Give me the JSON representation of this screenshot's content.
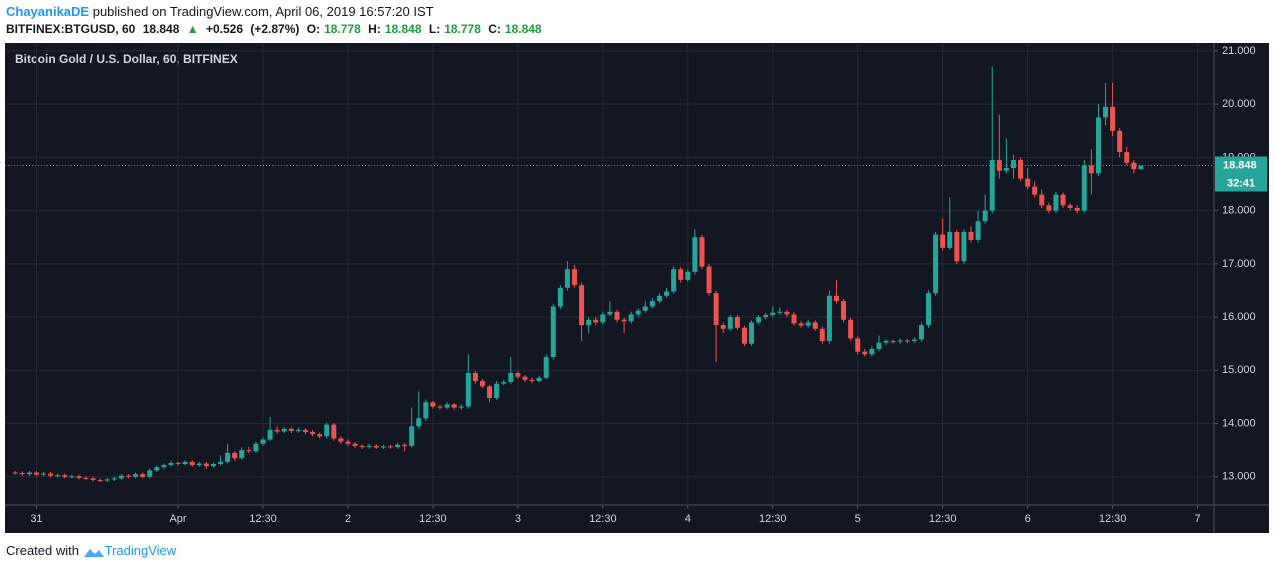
{
  "header": {
    "author": "ChayanikaDE",
    "published": "published on TradingView.com, April 06, 2019 16:57:20 IST",
    "symbol": "BITFINEX:BTGUSD, 60",
    "change": "+0.526",
    "change_pct": "(+2.87%)",
    "ohlc_labels": [
      "O:",
      "H:",
      "L:",
      "C:"
    ]
  },
  "footer": {
    "created": "Created with",
    "brand": "TradingView"
  },
  "chart_data": {
    "type": "candlestick",
    "title": "Bitcoin Gold / U.S. Dollar, 60, BITFINEX",
    "up_color": "#26a69a",
    "down_color": "#ef5350",
    "grid": true,
    "countdown": "32:41",
    "ylim": [
      12.47,
      21.13
    ],
    "yticks": [
      {
        "value": 13,
        "label": "13.000"
      },
      {
        "value": 14,
        "label": "14.000"
      },
      {
        "value": 15,
        "label": "15.000"
      },
      {
        "value": 16,
        "label": "16.000"
      },
      {
        "value": 17,
        "label": "17.000"
      },
      {
        "value": 18,
        "label": "18.000"
      },
      {
        "value": 19,
        "label": "19.000"
      },
      {
        "value": 20,
        "label": "20.000"
      },
      {
        "value": 21,
        "label": "21.000"
      }
    ],
    "categories": [
      null,
      null,
      null,
      "31",
      null,
      null,
      null,
      null,
      null,
      null,
      null,
      null,
      null,
      null,
      null,
      null,
      null,
      null,
      null,
      null,
      null,
      null,
      null,
      "Apr",
      null,
      null,
      null,
      null,
      null,
      null,
      null,
      null,
      null,
      null,
      null,
      "12:30",
      null,
      null,
      null,
      null,
      null,
      null,
      null,
      null,
      null,
      null,
      null,
      "2",
      null,
      null,
      null,
      null,
      null,
      null,
      null,
      null,
      null,
      null,
      null,
      "12:30",
      null,
      null,
      null,
      null,
      null,
      null,
      null,
      null,
      null,
      null,
      null,
      "3",
      null,
      null,
      null,
      null,
      null,
      null,
      null,
      null,
      null,
      null,
      null,
      "12:30",
      null,
      null,
      null,
      null,
      null,
      null,
      null,
      null,
      null,
      null,
      null,
      "4",
      null,
      null,
      null,
      null,
      null,
      null,
      null,
      null,
      null,
      null,
      null,
      "12:30",
      null,
      null,
      null,
      null,
      null,
      null,
      null,
      null,
      null,
      null,
      null,
      "5",
      null,
      null,
      null,
      null,
      null,
      null,
      null,
      null,
      null,
      null,
      null,
      "12:30",
      null,
      null,
      null,
      null,
      null,
      null,
      null,
      null,
      null,
      null,
      null,
      "6",
      null,
      null,
      null,
      null,
      null,
      null,
      null,
      null,
      null,
      null,
      null,
      "12:30",
      null,
      null,
      null,
      null,
      null,
      null,
      null,
      null,
      null,
      null,
      null,
      "7"
    ],
    "ohlc": [
      [
        13.08,
        13.11,
        13.04,
        13.07
      ],
      [
        13.07,
        13.1,
        13.02,
        13.05
      ],
      [
        13.05,
        13.11,
        13.02,
        13.08
      ],
      [
        13.08,
        13.11,
        13.01,
        13.04
      ],
      [
        13.04,
        13.09,
        13.01,
        13.06
      ],
      [
        13.06,
        13.09,
        12.99,
        13.02
      ],
      [
        13.02,
        13.06,
        12.99,
        13.03
      ],
      [
        13.03,
        13.06,
        12.97,
        13.0
      ],
      [
        13.0,
        13.04,
        12.97,
        13.01
      ],
      [
        13.01,
        13.04,
        12.95,
        12.98
      ],
      [
        12.98,
        13.01,
        12.94,
        12.97
      ],
      [
        12.97,
        13.0,
        12.91,
        12.94
      ],
      [
        12.94,
        12.97,
        12.9,
        12.93
      ],
      [
        12.93,
        12.98,
        12.9,
        12.95
      ],
      [
        12.95,
        13.0,
        12.92,
        12.97
      ],
      [
        12.97,
        13.05,
        12.94,
        13.02
      ],
      [
        13.02,
        13.05,
        12.97,
        13.0
      ],
      [
        13.0,
        13.08,
        12.97,
        13.05
      ],
      [
        13.05,
        13.08,
        12.97,
        13.0
      ],
      [
        13.0,
        13.15,
        12.97,
        13.12
      ],
      [
        13.12,
        13.21,
        13.09,
        13.18
      ],
      [
        13.18,
        13.25,
        13.15,
        13.22
      ],
      [
        13.22,
        13.3,
        13.19,
        13.26
      ],
      [
        13.26,
        13.29,
        13.21,
        13.24
      ],
      [
        13.24,
        13.31,
        13.21,
        13.28
      ],
      [
        13.28,
        13.31,
        13.19,
        13.22
      ],
      [
        13.22,
        13.28,
        13.19,
        13.25
      ],
      [
        13.25,
        13.28,
        13.15,
        13.2
      ],
      [
        13.2,
        13.27,
        13.17,
        13.24
      ],
      [
        13.24,
        13.4,
        13.21,
        13.28
      ],
      [
        13.28,
        13.62,
        13.25,
        13.45
      ],
      [
        13.45,
        13.48,
        13.3,
        13.35
      ],
      [
        13.35,
        13.55,
        13.32,
        13.5
      ],
      [
        13.5,
        13.56,
        13.44,
        13.48
      ],
      [
        13.48,
        13.66,
        13.45,
        13.62
      ],
      [
        13.62,
        13.74,
        13.58,
        13.7
      ],
      [
        13.7,
        14.12,
        13.67,
        13.88
      ],
      [
        13.88,
        13.95,
        13.8,
        13.85
      ],
      [
        13.85,
        13.93,
        13.82,
        13.9
      ],
      [
        13.9,
        13.93,
        13.82,
        13.86
      ],
      [
        13.86,
        13.92,
        13.83,
        13.88
      ],
      [
        13.88,
        13.91,
        13.8,
        13.84
      ],
      [
        13.84,
        13.88,
        13.76,
        13.8
      ],
      [
        13.8,
        13.83,
        13.72,
        13.76
      ],
      [
        13.76,
        14.02,
        13.72,
        13.98
      ],
      [
        13.98,
        14.01,
        13.68,
        13.72
      ],
      [
        13.72,
        13.76,
        13.62,
        13.66
      ],
      [
        13.66,
        13.7,
        13.58,
        13.62
      ],
      [
        13.62,
        13.65,
        13.54,
        13.58
      ],
      [
        13.58,
        13.61,
        13.52,
        13.56
      ],
      [
        13.56,
        13.62,
        13.53,
        13.58
      ],
      [
        13.58,
        13.61,
        13.52,
        13.55
      ],
      [
        13.55,
        13.6,
        13.52,
        13.57
      ],
      [
        13.57,
        13.6,
        13.53,
        13.56
      ],
      [
        13.56,
        13.64,
        13.53,
        13.6
      ],
      [
        13.6,
        13.63,
        13.48,
        13.58
      ],
      [
        13.58,
        14.3,
        13.55,
        13.95
      ],
      [
        13.95,
        14.6,
        13.9,
        14.1
      ],
      [
        14.1,
        14.45,
        14.05,
        14.4
      ],
      [
        14.4,
        14.43,
        14.28,
        14.32
      ],
      [
        14.32,
        14.35,
        14.26,
        14.3
      ],
      [
        14.3,
        14.4,
        14.27,
        14.36
      ],
      [
        14.36,
        14.39,
        14.26,
        14.3
      ],
      [
        14.3,
        14.36,
        14.26,
        14.32
      ],
      [
        14.32,
        15.3,
        14.28,
        14.95
      ],
      [
        14.95,
        14.99,
        14.75,
        14.8
      ],
      [
        14.8,
        14.84,
        14.66,
        14.7
      ],
      [
        14.7,
        14.73,
        14.4,
        14.48
      ],
      [
        14.48,
        14.8,
        14.44,
        14.75
      ],
      [
        14.75,
        14.82,
        14.72,
        14.78
      ],
      [
        14.78,
        15.25,
        14.74,
        14.95
      ],
      [
        14.95,
        14.98,
        14.84,
        14.88
      ],
      [
        14.88,
        14.91,
        14.78,
        14.82
      ],
      [
        14.82,
        14.86,
        14.76,
        14.8
      ],
      [
        14.8,
        14.9,
        14.77,
        14.86
      ],
      [
        14.86,
        15.3,
        14.83,
        15.25
      ],
      [
        15.25,
        16.25,
        15.2,
        16.2
      ],
      [
        16.2,
        16.6,
        16.15,
        16.55
      ],
      [
        16.55,
        17.05,
        16.5,
        16.9
      ],
      [
        16.9,
        16.98,
        16.55,
        16.6
      ],
      [
        16.6,
        16.65,
        15.55,
        15.85
      ],
      [
        15.85,
        16.0,
        15.7,
        15.95
      ],
      [
        15.95,
        16.0,
        15.85,
        15.9
      ],
      [
        15.9,
        16.1,
        15.86,
        16.05
      ],
      [
        16.05,
        16.3,
        16.02,
        16.1
      ],
      [
        16.1,
        16.14,
        15.9,
        15.95
      ],
      [
        15.95,
        15.99,
        15.7,
        15.92
      ],
      [
        15.92,
        16.1,
        15.88,
        16.05
      ],
      [
        16.05,
        16.16,
        16.0,
        16.12
      ],
      [
        16.12,
        16.3,
        16.08,
        16.2
      ],
      [
        16.2,
        16.36,
        16.16,
        16.3
      ],
      [
        16.3,
        16.45,
        16.26,
        16.4
      ],
      [
        16.4,
        16.55,
        16.36,
        16.48
      ],
      [
        16.48,
        16.95,
        16.44,
        16.9
      ],
      [
        16.9,
        16.94,
        16.65,
        16.7
      ],
      [
        16.7,
        16.9,
        16.66,
        16.85
      ],
      [
        16.85,
        17.65,
        16.8,
        17.5
      ],
      [
        17.5,
        17.55,
        16.9,
        16.95
      ],
      [
        16.95,
        17.0,
        16.4,
        16.45
      ],
      [
        16.45,
        16.5,
        15.15,
        15.85
      ],
      [
        15.85,
        15.9,
        15.7,
        15.78
      ],
      [
        15.78,
        16.04,
        15.74,
        16.0
      ],
      [
        16.0,
        16.04,
        15.76,
        15.8
      ],
      [
        15.8,
        15.84,
        15.45,
        15.5
      ],
      [
        15.5,
        15.94,
        15.46,
        15.9
      ],
      [
        15.9,
        16.04,
        15.86,
        16.0
      ],
      [
        16.0,
        16.08,
        15.96,
        16.04
      ],
      [
        16.04,
        16.2,
        16.0,
        16.08
      ],
      [
        16.08,
        16.18,
        16.04,
        16.1
      ],
      [
        16.1,
        16.14,
        16.0,
        16.05
      ],
      [
        16.05,
        16.09,
        15.84,
        15.88
      ],
      [
        15.88,
        15.92,
        15.8,
        15.84
      ],
      [
        15.84,
        15.95,
        15.8,
        15.9
      ],
      [
        15.9,
        15.94,
        15.74,
        15.78
      ],
      [
        15.78,
        15.82,
        15.5,
        15.55
      ],
      [
        15.55,
        16.5,
        15.5,
        16.4
      ],
      [
        16.4,
        16.7,
        16.25,
        16.3
      ],
      [
        16.3,
        16.34,
        15.9,
        15.95
      ],
      [
        15.95,
        15.99,
        15.55,
        15.6
      ],
      [
        15.6,
        15.64,
        15.3,
        15.35
      ],
      [
        15.35,
        15.4,
        15.26,
        15.3
      ],
      [
        15.3,
        15.45,
        15.26,
        15.4
      ],
      [
        15.4,
        15.65,
        15.36,
        15.52
      ],
      [
        15.52,
        15.58,
        15.48,
        15.55
      ],
      [
        15.55,
        15.58,
        15.5,
        15.54
      ],
      [
        15.54,
        15.6,
        15.5,
        15.56
      ],
      [
        15.56,
        15.59,
        15.51,
        15.55
      ],
      [
        15.55,
        15.62,
        15.52,
        15.58
      ],
      [
        15.58,
        15.9,
        15.54,
        15.85
      ],
      [
        15.85,
        16.5,
        15.8,
        16.45
      ],
      [
        16.45,
        17.6,
        16.4,
        17.55
      ],
      [
        17.55,
        17.85,
        17.25,
        17.3
      ],
      [
        17.3,
        18.25,
        17.26,
        17.6
      ],
      [
        17.6,
        17.64,
        17.0,
        17.05
      ],
      [
        17.05,
        17.65,
        17.0,
        17.6
      ],
      [
        17.6,
        17.7,
        17.4,
        17.45
      ],
      [
        17.45,
        18.0,
        17.4,
        17.8
      ],
      [
        17.8,
        18.3,
        17.75,
        18.0
      ],
      [
        18.0,
        20.7,
        17.95,
        18.95
      ],
      [
        18.95,
        19.8,
        18.6,
        18.75
      ],
      [
        18.75,
        19.35,
        18.7,
        18.8
      ],
      [
        18.8,
        19.05,
        18.6,
        18.95
      ],
      [
        18.95,
        19.0,
        18.55,
        18.6
      ],
      [
        18.6,
        18.8,
        18.4,
        18.45
      ],
      [
        18.45,
        18.55,
        18.25,
        18.3
      ],
      [
        18.3,
        18.4,
        18.05,
        18.1
      ],
      [
        18.1,
        18.15,
        17.95,
        18.0
      ],
      [
        18.0,
        18.35,
        17.96,
        18.3
      ],
      [
        18.3,
        18.34,
        18.05,
        18.1
      ],
      [
        18.1,
        18.14,
        18.0,
        18.05
      ],
      [
        18.05,
        18.1,
        17.95,
        18.0
      ],
      [
        18.0,
        18.95,
        17.96,
        18.85
      ],
      [
        18.85,
        19.15,
        18.3,
        18.7
      ],
      [
        18.7,
        20.0,
        18.65,
        19.75
      ],
      [
        19.75,
        20.4,
        19.6,
        19.95
      ],
      [
        19.95,
        20.4,
        19.4,
        19.5
      ],
      [
        19.5,
        19.55,
        19.0,
        19.1
      ],
      [
        19.1,
        19.2,
        18.85,
        18.9
      ],
      [
        18.9,
        18.95,
        18.7,
        18.778
      ],
      [
        18.778,
        18.848,
        18.778,
        18.848
      ],
      null,
      null,
      null,
      null,
      null,
      null,
      null,
      null
    ]
  }
}
